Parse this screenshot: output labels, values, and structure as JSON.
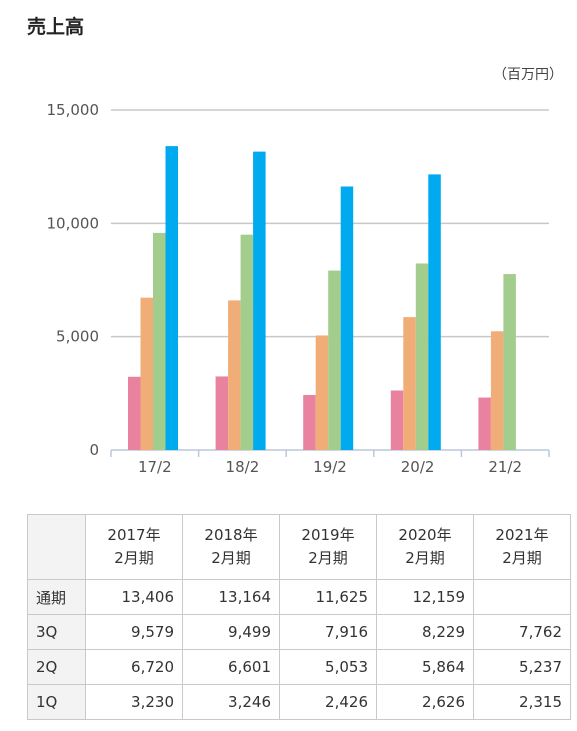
{
  "page": {
    "title": "売上高",
    "unit": "（百万円）"
  },
  "chart_data": {
    "type": "bar",
    "categories": [
      "17/2",
      "18/2",
      "19/2",
      "20/2",
      "21/2"
    ],
    "ylim": [
      0,
      15000
    ],
    "yticks": [
      0,
      5000,
      10000,
      15000
    ],
    "ytick_labels": [
      "0",
      "5,000",
      "10,000",
      "15,000"
    ],
    "grid": true,
    "series": [
      {
        "name": "1Q",
        "color": "#e8829f",
        "values": [
          3230,
          3246,
          2426,
          2626,
          2315
        ]
      },
      {
        "name": "2Q",
        "color": "#f0ad78",
        "values": [
          6720,
          6601,
          5053,
          5864,
          5237
        ]
      },
      {
        "name": "3Q",
        "color": "#a3cd8c",
        "values": [
          9579,
          9499,
          7916,
          8229,
          7762
        ]
      },
      {
        "name": "通期",
        "color": "#00aaee",
        "values": [
          13406,
          13164,
          11625,
          12159,
          null
        ]
      }
    ]
  },
  "table": {
    "headers": [
      [
        "2017年",
        "2月期"
      ],
      [
        "2018年",
        "2月期"
      ],
      [
        "2019年",
        "2月期"
      ],
      [
        "2020年",
        "2月期"
      ],
      [
        "2021年",
        "2月期"
      ]
    ],
    "rows": [
      {
        "label": "通期",
        "values": [
          "13,406",
          "13,164",
          "11,625",
          "12,159",
          ""
        ]
      },
      {
        "label": "3Q",
        "values": [
          "9,579",
          "9,499",
          "7,916",
          "8,229",
          "7,762"
        ]
      },
      {
        "label": "2Q",
        "values": [
          "6,720",
          "6,601",
          "5,053",
          "5,864",
          "5,237"
        ]
      },
      {
        "label": "1Q",
        "values": [
          "3,230",
          "3,246",
          "2,426",
          "2,626",
          "2,315"
        ]
      }
    ]
  }
}
